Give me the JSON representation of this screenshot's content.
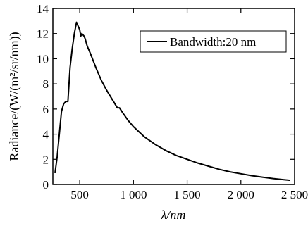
{
  "chart_data": {
    "type": "line",
    "xlabel": "λ/nm",
    "ylabel": "Radiance/(W/(m²/sr/nm))",
    "xlim": [
      250,
      2500
    ],
    "ylim": [
      0,
      14
    ],
    "x_ticks": [
      500,
      1000,
      1500,
      2000,
      2500
    ],
    "x_tick_labels": [
      "500",
      "1 000",
      "1 500",
      "2 000",
      "2 500"
    ],
    "y_ticks": [
      0,
      2,
      4,
      6,
      8,
      10,
      12,
      14
    ],
    "y_tick_labels": [
      "0",
      "2",
      "4",
      "6",
      "8",
      "10",
      "12",
      "14"
    ],
    "grid": false,
    "legend_position": "top-right",
    "line_color": "#000000",
    "series": [
      {
        "name": "Bandwidth:20 nm",
        "x": [
          270,
          290,
          310,
          330,
          350,
          370,
          390,
          410,
          430,
          450,
          470,
          480,
          490,
          500,
          510,
          520,
          530,
          540,
          550,
          560,
          570,
          600,
          650,
          700,
          750,
          800,
          850,
          870,
          900,
          950,
          1000,
          1100,
          1200,
          1300,
          1400,
          1500,
          1600,
          1700,
          1800,
          1900,
          2000,
          2100,
          2200,
          2300,
          2400,
          2460
        ],
        "y": [
          0.9,
          2.2,
          4.0,
          5.8,
          6.4,
          6.6,
          6.6,
          9.3,
          10.8,
          12.0,
          12.9,
          12.7,
          12.5,
          12.3,
          11.8,
          12.0,
          11.9,
          11.8,
          11.6,
          11.3,
          11.0,
          10.4,
          9.3,
          8.3,
          7.5,
          6.8,
          6.1,
          6.1,
          5.7,
          5.1,
          4.6,
          3.8,
          3.2,
          2.7,
          2.3,
          2.0,
          1.7,
          1.45,
          1.2,
          1.0,
          0.85,
          0.7,
          0.58,
          0.47,
          0.38,
          0.33
        ]
      }
    ]
  }
}
